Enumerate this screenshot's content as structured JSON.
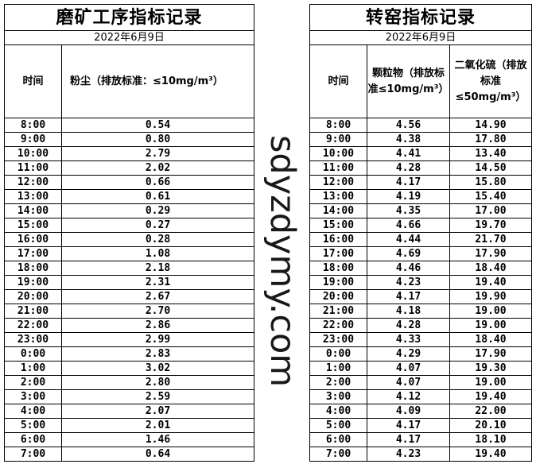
{
  "left_table": {
    "title": "磨矿工序指标记录",
    "date": "2022年6月9日",
    "headers": {
      "time": "时间",
      "dust": "粉尘（排放标准：≤10mg/m³）"
    },
    "rows": [
      [
        "8:00",
        "0.54"
      ],
      [
        "9:00",
        "0.80"
      ],
      [
        "10:00",
        "2.79"
      ],
      [
        "11:00",
        "2.02"
      ],
      [
        "12:00",
        "0.66"
      ],
      [
        "13:00",
        "0.61"
      ],
      [
        "14:00",
        "0.29"
      ],
      [
        "15:00",
        "0.27"
      ],
      [
        "16:00",
        "0.28"
      ],
      [
        "17:00",
        "1.08"
      ],
      [
        "18:00",
        "2.18"
      ],
      [
        "19:00",
        "2.31"
      ],
      [
        "20:00",
        "2.67"
      ],
      [
        "21:00",
        "2.70"
      ],
      [
        "22:00",
        "2.86"
      ],
      [
        "23:00",
        "2.99"
      ],
      [
        "0:00",
        "2.83"
      ],
      [
        "1:00",
        "3.02"
      ],
      [
        "2:00",
        "2.80"
      ],
      [
        "3:00",
        "2.59"
      ],
      [
        "4:00",
        "2.07"
      ],
      [
        "5:00",
        "2.01"
      ],
      [
        "6:00",
        "1.46"
      ],
      [
        "7:00",
        "0.64"
      ]
    ]
  },
  "right_table": {
    "title": "转窑指标记录",
    "date": "2022年6月9日",
    "headers": {
      "time": "时间",
      "particulate": "颗粒物（排放标准≤10mg/m³）",
      "so2": "二氧化硫（排放标准≤50mg/m³）"
    },
    "rows": [
      [
        "8:00",
        "4.56",
        "14.90"
      ],
      [
        "9:00",
        "4.38",
        "17.80"
      ],
      [
        "10:00",
        "4.41",
        "13.40"
      ],
      [
        "11:00",
        "4.28",
        "14.50"
      ],
      [
        "12:00",
        "4.17",
        "15.80"
      ],
      [
        "13:00",
        "4.19",
        "15.40"
      ],
      [
        "14:00",
        "4.35",
        "17.00"
      ],
      [
        "15:00",
        "4.66",
        "19.70"
      ],
      [
        "16:00",
        "4.44",
        "21.70"
      ],
      [
        "17:00",
        "4.69",
        "17.90"
      ],
      [
        "18:00",
        "4.46",
        "18.40"
      ],
      [
        "19:00",
        "4.23",
        "19.40"
      ],
      [
        "20:00",
        "4.17",
        "19.90"
      ],
      [
        "21:00",
        "4.18",
        "19.00"
      ],
      [
        "22:00",
        "4.28",
        "19.00"
      ],
      [
        "23:00",
        "4.33",
        "18.40"
      ],
      [
        "0:00",
        "4.29",
        "17.90"
      ],
      [
        "1:00",
        "4.07",
        "19.30"
      ],
      [
        "2:00",
        "4.07",
        "19.00"
      ],
      [
        "3:00",
        "4.12",
        "19.40"
      ],
      [
        "4:00",
        "4.09",
        "22.00"
      ],
      [
        "5:00",
        "4.17",
        "20.10"
      ],
      [
        "6:00",
        "4.17",
        "18.10"
      ],
      [
        "7:00",
        "4.23",
        "19.40"
      ]
    ]
  },
  "watermark": "sdyzdymy.com"
}
